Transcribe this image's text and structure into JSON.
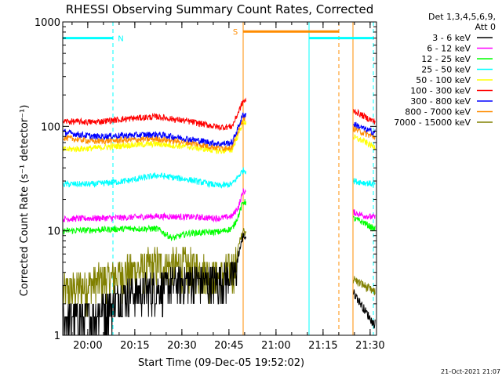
{
  "chart_data": {
    "type": "line",
    "title": "RHESSI Observing Summary Count Rates, Corrected",
    "xlabel": "Start Time (09-Dec-05 19:52:02)",
    "ylabel": "Corrected Count Rate (s⁻¹ detector⁻¹)",
    "y_scale": "log",
    "ylim": [
      1,
      1000
    ],
    "y_ticks": [
      {
        "value": 1,
        "label": "1"
      },
      {
        "value": 10,
        "label": "10"
      },
      {
        "value": 100,
        "label": "100"
      },
      {
        "value": 1000,
        "label": "1000"
      }
    ],
    "x_range_minutes": [
      0,
      100
    ],
    "x_ticks": [
      {
        "minute": 7.97,
        "label": "20:00"
      },
      {
        "minute": 22.97,
        "label": "20:15"
      },
      {
        "minute": 37.97,
        "label": "20:30"
      },
      {
        "minute": 52.97,
        "label": "20:45"
      },
      {
        "minute": 67.97,
        "label": "21:00"
      },
      {
        "minute": 82.97,
        "label": "21:15"
      },
      {
        "minute": 97.97,
        "label": "21:30"
      }
    ],
    "legend": {
      "header": [
        "Det 1,3,4,5,6,9,",
        "Att 0"
      ],
      "position": "right"
    },
    "gaps_minutes": [
      [
        58.5,
        92.5
      ]
    ],
    "series": [
      {
        "name": "3 - 6 keV",
        "color": "#000000",
        "x": [
          0,
          10,
          20,
          30,
          40,
          50,
          55,
          56,
          57.5,
          93,
          96,
          99
        ],
        "y": [
          1.4,
          1.6,
          2.5,
          2.8,
          3.4,
          3.3,
          4,
          6,
          9,
          2.5,
          1.8,
          1.3
        ]
      },
      {
        "name": "6 - 12 keV",
        "color": "#ff00ff",
        "x": [
          0,
          10,
          20,
          30,
          40,
          50,
          54,
          56,
          57.5,
          93,
          96,
          99
        ],
        "y": [
          13,
          13.2,
          13.4,
          13.8,
          13.6,
          13.2,
          13.8,
          17,
          24,
          15,
          14,
          13.5
        ]
      },
      {
        "name": "12 - 25 keV",
        "color": "#00ff00",
        "x": [
          0,
          10,
          20,
          30,
          35,
          40,
          50,
          54,
          56,
          57.5,
          93,
          96,
          99
        ],
        "y": [
          10,
          10.2,
          10.5,
          10.5,
          8.5,
          9.5,
          9.8,
          10.5,
          14,
          19,
          13,
          12,
          10.5
        ]
      },
      {
        "name": "25 - 50 keV",
        "color": "#00ffff",
        "x": [
          0,
          10,
          20,
          30,
          40,
          50,
          54,
          57.5,
          93,
          96,
          99
        ],
        "y": [
          28,
          28,
          30,
          34,
          31,
          27,
          28,
          38,
          30,
          29,
          28
        ]
      },
      {
        "name": "50 - 100 keV",
        "color": "#ffff00",
        "x": [
          0,
          10,
          20,
          30,
          40,
          50,
          54,
          57.5,
          93,
          96,
          99
        ],
        "y": [
          60,
          62,
          66,
          68,
          64,
          58,
          60,
          110,
          78,
          72,
          64
        ]
      },
      {
        "name": "100 - 300 keV",
        "color": "#ff0000",
        "x": [
          0,
          10,
          20,
          30,
          40,
          50,
          54,
          57.5,
          93,
          96,
          99
        ],
        "y": [
          112,
          110,
          118,
          124,
          112,
          98,
          100,
          175,
          140,
          125,
          112
        ]
      },
      {
        "name": "300 - 800 keV",
        "color": "#0000ff",
        "x": [
          0,
          10,
          20,
          30,
          40,
          50,
          54,
          57.5,
          93,
          96,
          99
        ],
        "y": [
          88,
          80,
          82,
          84,
          76,
          68,
          70,
          130,
          105,
          95,
          88
        ]
      },
      {
        "name": "800 - 7000 keV",
        "color": "#ff8c00",
        "x": [
          0,
          10,
          20,
          30,
          40,
          50,
          54,
          57.5,
          93,
          96,
          99
        ],
        "y": [
          78,
          72,
          74,
          76,
          70,
          62,
          64,
          120,
          95,
          86,
          80
        ]
      },
      {
        "name": "7000 - 15000 keV",
        "color": "#808000",
        "x": [
          0,
          10,
          20,
          30,
          40,
          50,
          55,
          56,
          57.5,
          93,
          96,
          99
        ],
        "y": [
          2.6,
          3.2,
          4.0,
          4.8,
          4.6,
          3.7,
          4.5,
          7,
          10,
          3.4,
          3.0,
          2.6
        ]
      }
    ],
    "flags": [
      {
        "label": "N",
        "color": "#00ffff",
        "bar_minutes": [
          0,
          16
        ],
        "line_minutes": [
          0,
          16,
          78.5,
          99
        ],
        "dashed": [
          false,
          true,
          false,
          true
        ],
        "bar_level": 700
      },
      {
        "label": "S",
        "color": "#ff8c00",
        "bar_minutes": [
          57.5,
          88
        ],
        "line_minutes": [
          57.5,
          88,
          92.5
        ],
        "dashed": [
          false,
          true,
          false
        ],
        "bar_level": 810
      }
    ],
    "post_gap_cyan_bar": [
      78.5,
      99
    ],
    "grid": false
  },
  "footer": {
    "timestamp": "21-Oct-2021 21:07"
  }
}
